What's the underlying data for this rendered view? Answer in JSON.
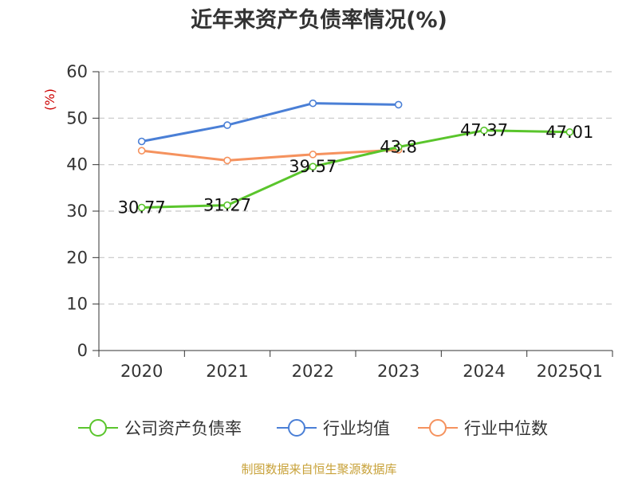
{
  "chart_data": {
    "type": "line",
    "title": "近年来资产负债率情况(%)",
    "ylabel": "(%)",
    "categories": [
      "2020",
      "2021",
      "2022",
      "2023",
      "2024",
      "2025Q1"
    ],
    "ylim": [
      0,
      60
    ],
    "yticks": [
      "0",
      "10",
      "20",
      "30",
      "40",
      "50",
      "60"
    ],
    "grid": true,
    "legend_position": "bottom",
    "series": [
      {
        "name": "公司资产负债率",
        "color": "#5ac52c",
        "values": [
          30.77,
          31.27,
          39.57,
          43.8,
          47.37,
          47.01
        ],
        "labels": [
          "30.77",
          "31.27",
          "39.57",
          "43.8",
          "47.37",
          "47.01"
        ]
      },
      {
        "name": "行业均值",
        "color": "#4a7fd6",
        "values": [
          45.0,
          48.5,
          53.2,
          52.9,
          null,
          null
        ]
      },
      {
        "name": "行业中位数",
        "color": "#f5925e",
        "values": [
          43.0,
          40.9,
          42.2,
          43.2,
          null,
          null
        ]
      }
    ],
    "source": "制图数据来自恒生聚源数据库"
  }
}
